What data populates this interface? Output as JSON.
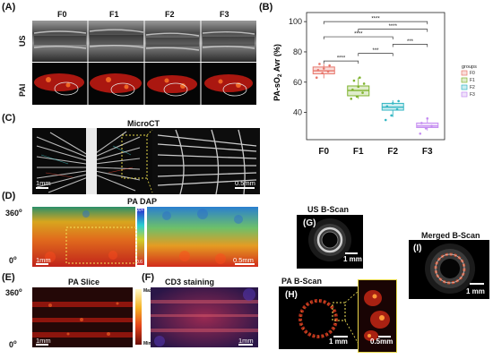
{
  "panels": {
    "A": {
      "label": "(A)",
      "cols": [
        "F0",
        "F1",
        "F2",
        "F3"
      ],
      "row_us": "US",
      "row_pai": "PAI"
    },
    "B": {
      "label": "(B)"
    },
    "C": {
      "label": "(C)",
      "title": "MicroCT",
      "scale_left": "1mm",
      "scale_right": "0.5mm"
    },
    "D": {
      "label": "(D)",
      "title": "PA DAP",
      "y_top": "360",
      "y_bottom": "0",
      "scale_left": "1mm",
      "scale_right": "0.5mm",
      "colorbar_top": "90+",
      "colorbar_bottom": "0.6"
    },
    "E": {
      "label": "(E)",
      "title": "PA Slice",
      "y_top": "360",
      "y_bottom": "0",
      "scale": "1mm",
      "colorbar_top": "Max",
      "colorbar_bottom": "Min"
    },
    "F": {
      "label": "(F)",
      "title": "CD3 staining",
      "scale": "1mm"
    },
    "G": {
      "label": "(G)",
      "title": "US B-Scan",
      "scale": "1 mm"
    },
    "H": {
      "label": "(H)",
      "title": "PA B-Scan",
      "scale_left": "1 mm",
      "scale_right": "0.5mm"
    },
    "I": {
      "label": "(I)",
      "title": "Merged B-Scan",
      "scale": "1 mm"
    }
  },
  "chart_data": {
    "type": "box",
    "categories": [
      "F0",
      "F1",
      "F2",
      "F3"
    ],
    "ylabel_prefix": "PA-sO",
    "ylabel_sub": "2",
    "ylabel_suffix": " Avr (%)",
    "yticks": [
      "40",
      "60",
      "80",
      "100"
    ],
    "ylim": [
      22,
      106
    ],
    "boxes": [
      {
        "name": "F0",
        "q1": 65.5,
        "median": 67.5,
        "q3": 70,
        "low": 62.5,
        "high": 72,
        "color": "#e8776c",
        "points": [
          63,
          66,
          67,
          68,
          69,
          71,
          72
        ]
      },
      {
        "name": "F1",
        "q1": 51,
        "median": 54.5,
        "q3": 57.5,
        "low": 49,
        "high": 63,
        "color": "#7fb32e",
        "points": [
          49,
          50.5,
          53,
          55,
          57,
          59,
          61,
          63
        ]
      },
      {
        "name": "F2",
        "q1": 41.5,
        "median": 43.5,
        "q3": 46,
        "low": 37,
        "high": 48,
        "color": "#33b6c3",
        "points": [
          35,
          38,
          42,
          44,
          46,
          47.5
        ]
      },
      {
        "name": "F3",
        "q1": 30,
        "median": 31,
        "q3": 33,
        "low": 28,
        "high": 36,
        "color": "#c58df1",
        "points": [
          26,
          29.5,
          31,
          33,
          36
        ]
      }
    ],
    "legend": {
      "title": "groups",
      "entries": [
        "F0",
        "F1",
        "F2",
        "F3"
      ],
      "placement": "right"
    },
    "significance": [
      {
        "from": 0,
        "to": 3,
        "y": 100,
        "label": "****"
      },
      {
        "from": 1,
        "to": 3,
        "y": 95,
        "label": "****"
      },
      {
        "from": 0,
        "to": 2,
        "y": 90,
        "label": "****"
      },
      {
        "from": 2,
        "to": 3,
        "y": 85,
        "label": "***"
      },
      {
        "from": 1,
        "to": 2,
        "y": 79,
        "label": "***"
      },
      {
        "from": 0,
        "to": 1,
        "y": 74,
        "label": "****"
      }
    ]
  }
}
